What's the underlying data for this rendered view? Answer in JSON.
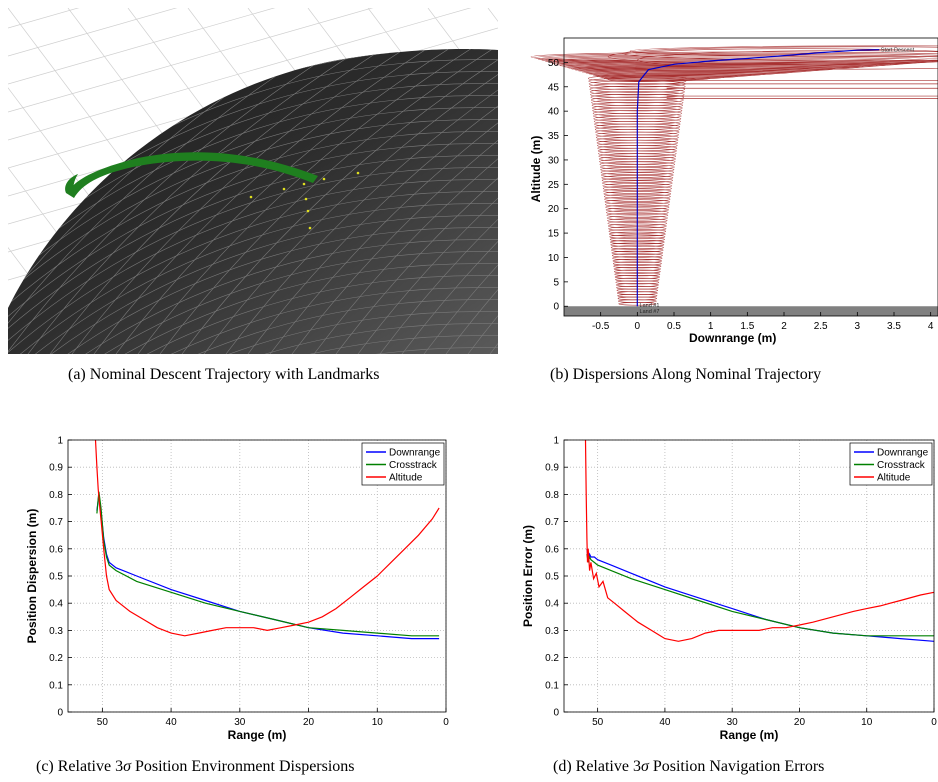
{
  "captions": {
    "a": "(a) Nominal Descent Trajectory with Landmarks",
    "b": "(b) Dispersions Along Nominal Trajectory",
    "c_pre": "(c) Relative 3",
    "c_sigma": "σ",
    "c_post": " Position Environment Dispersions",
    "d_pre": "(d) Relative 3",
    "d_sigma": "σ",
    "d_post": " Position Navigation Errors"
  },
  "scene": {
    "trajectory_color": "#1f7f1f",
    "landmark_color": "#e0e020",
    "sphere_color": "#2e2e2e"
  },
  "chart_data": [
    {
      "id": "b",
      "type": "line",
      "xlabel": "Downrange (m)",
      "ylabel": "Altitude (m)",
      "xlim": [
        -1,
        4.1
      ],
      "ylim": [
        -2,
        55
      ],
      "xticks": [
        "-0.5",
        "0",
        "0.5",
        "1",
        "1.5",
        "2",
        "2.5",
        "3",
        "3.5",
        "4"
      ],
      "yticks": [
        "0",
        "5",
        "10",
        "15",
        "20",
        "25",
        "30",
        "35",
        "40",
        "45",
        "50"
      ],
      "ground_color": "#808080",
      "ellipse_color": "#a83232",
      "annotations": [
        "Start Descent",
        "Land #1",
        "Land #7"
      ],
      "series": [
        {
          "color": "#0000cc",
          "x": [
            0,
            0,
            0,
            0.02,
            0.15,
            0.5,
            1.0,
            1.5,
            2.0,
            2.5,
            3.0,
            3.3
          ],
          "y": [
            0,
            20,
            40,
            46,
            48.5,
            49.6,
            50.3,
            50.8,
            51.4,
            52.0,
            52.5,
            52.6
          ]
        }
      ]
    },
    {
      "id": "c",
      "type": "line",
      "xlabel": "Range (m)",
      "ylabel": "Position Dispersion (m)",
      "xlim": [
        55,
        0
      ],
      "ylim": [
        0,
        1
      ],
      "xticks": [
        "50",
        "40",
        "30",
        "20",
        "10",
        "0"
      ],
      "yticks": [
        "0",
        "0.1",
        "0.2",
        "0.3",
        "0.4",
        "0.5",
        "0.6",
        "0.7",
        "0.8",
        "0.9",
        "1"
      ],
      "legend_position": "top-right",
      "series": [
        {
          "name": "Downrange",
          "color": "#0000ff",
          "x": [
            50.8,
            50.5,
            50.2,
            49.8,
            49.4,
            49,
            48,
            45,
            40,
            35,
            30,
            25,
            20,
            15,
            10,
            5,
            1
          ],
          "y": [
            0.74,
            0.8,
            0.74,
            0.64,
            0.58,
            0.55,
            0.53,
            0.5,
            0.45,
            0.41,
            0.37,
            0.34,
            0.31,
            0.29,
            0.28,
            0.27,
            0.27
          ]
        },
        {
          "name": "Crosstrack",
          "color": "#008000",
          "x": [
            50.8,
            50.5,
            50.2,
            49.8,
            49.4,
            49,
            48,
            45,
            40,
            35,
            30,
            25,
            20,
            15,
            10,
            5,
            1
          ],
          "y": [
            0.73,
            0.81,
            0.75,
            0.63,
            0.57,
            0.54,
            0.52,
            0.48,
            0.44,
            0.4,
            0.37,
            0.34,
            0.31,
            0.3,
            0.29,
            0.28,
            0.28
          ]
        },
        {
          "name": "Altitude",
          "color": "#ff0000",
          "x": [
            51.0,
            50.8,
            50.6,
            50.4,
            50.1,
            49.8,
            49.4,
            49,
            48,
            46,
            44,
            42,
            40,
            38,
            36,
            34,
            32,
            30,
            28,
            26,
            24,
            22,
            20,
            18,
            16,
            14,
            12,
            10,
            8,
            6,
            4,
            2,
            1
          ],
          "y": [
            1.0,
            0.9,
            0.82,
            0.76,
            0.68,
            0.6,
            0.5,
            0.45,
            0.41,
            0.37,
            0.34,
            0.31,
            0.29,
            0.28,
            0.29,
            0.3,
            0.31,
            0.31,
            0.31,
            0.3,
            0.31,
            0.32,
            0.33,
            0.35,
            0.38,
            0.42,
            0.46,
            0.5,
            0.55,
            0.6,
            0.65,
            0.71,
            0.75
          ]
        }
      ]
    },
    {
      "id": "d",
      "type": "line",
      "xlabel": "Range (m)",
      "ylabel": "Position Error (m)",
      "xlim": [
        55,
        0
      ],
      "ylim": [
        0,
        1
      ],
      "xticks": [
        "50",
        "40",
        "30",
        "20",
        "10",
        "0"
      ],
      "yticks": [
        "0",
        "0.1",
        "0.2",
        "0.3",
        "0.4",
        "0.5",
        "0.6",
        "0.7",
        "0.8",
        "0.9",
        "1"
      ],
      "legend_position": "top-right",
      "series": [
        {
          "name": "Downrange",
          "color": "#0000ff",
          "x": [
            51.6,
            51.4,
            51.2,
            51.0,
            50.5,
            50,
            48,
            45,
            40,
            35,
            30,
            25,
            20,
            15,
            10,
            5,
            0
          ],
          "y": [
            0.6,
            0.56,
            0.58,
            0.57,
            0.57,
            0.56,
            0.54,
            0.51,
            0.46,
            0.42,
            0.38,
            0.34,
            0.31,
            0.29,
            0.28,
            0.27,
            0.26
          ]
        },
        {
          "name": "Crosstrack",
          "color": "#008000",
          "x": [
            51.6,
            51.4,
            51.2,
            51.0,
            50.5,
            50,
            48,
            45,
            40,
            35,
            30,
            25,
            20,
            15,
            10,
            5,
            0
          ],
          "y": [
            0.58,
            0.55,
            0.57,
            0.56,
            0.55,
            0.54,
            0.52,
            0.49,
            0.45,
            0.41,
            0.37,
            0.34,
            0.31,
            0.29,
            0.28,
            0.28,
            0.28
          ]
        },
        {
          "name": "Altitude",
          "color": "#ff0000",
          "x": [
            51.8,
            51.7,
            51.6,
            51.5,
            51.4,
            51.2,
            51.0,
            50.6,
            50.2,
            49.8,
            49.2,
            48.5,
            47.5,
            46,
            44,
            42,
            40,
            38,
            36,
            34,
            32,
            30,
            28,
            26,
            24,
            22,
            20,
            18,
            15,
            12,
            10,
            8,
            5,
            2,
            0
          ],
          "y": [
            1.0,
            0.8,
            0.64,
            0.55,
            0.6,
            0.52,
            0.55,
            0.49,
            0.51,
            0.46,
            0.48,
            0.42,
            0.4,
            0.37,
            0.33,
            0.3,
            0.27,
            0.26,
            0.27,
            0.29,
            0.3,
            0.3,
            0.3,
            0.3,
            0.31,
            0.31,
            0.32,
            0.33,
            0.35,
            0.37,
            0.38,
            0.39,
            0.41,
            0.43,
            0.44
          ]
        }
      ]
    }
  ]
}
